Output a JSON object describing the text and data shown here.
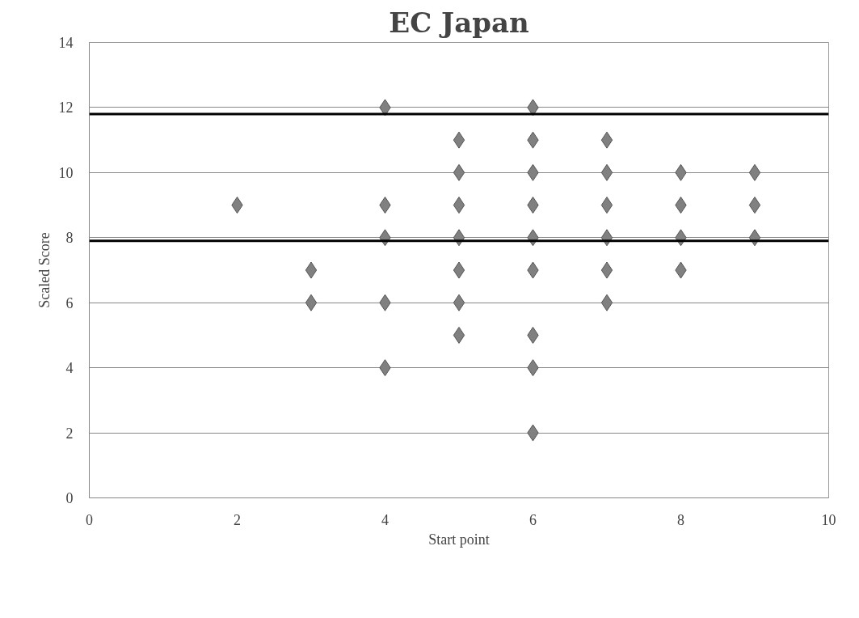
{
  "chart_data": {
    "type": "scatter",
    "title": "EC Japan",
    "xlabel": "Start point",
    "ylabel": "Scaled Score",
    "x": [
      2,
      3,
      3,
      4,
      4,
      4,
      4,
      4,
      5,
      5,
      5,
      5,
      5,
      5,
      5,
      6,
      6,
      6,
      6,
      6,
      6,
      6,
      6,
      6,
      7,
      7,
      7,
      7,
      7,
      7,
      8,
      8,
      8,
      8,
      9,
      9,
      9
    ],
    "values": [
      9,
      7,
      6,
      12,
      9,
      8,
      6,
      4,
      11,
      10,
      9,
      8,
      7,
      6,
      5,
      12,
      11,
      10,
      9,
      8,
      7,
      5,
      4,
      2,
      11,
      10,
      9,
      8,
      7,
      6,
      10,
      9,
      8,
      7,
      10,
      9,
      8
    ],
    "color": "#808080",
    "marker": "diamond",
    "xlim": [
      0,
      10
    ],
    "xticks": [
      0,
      2,
      4,
      6,
      8,
      10
    ],
    "ylim": [
      0,
      14
    ],
    "yticks": [
      0,
      2,
      4,
      6,
      8,
      10,
      12,
      14
    ],
    "grid": "y",
    "ref_lines": [
      {
        "axis": "y",
        "value": 11.8,
        "label": null,
        "color": "#000000"
      },
      {
        "axis": "y",
        "value": 7.9,
        "label": null,
        "color": "#000000"
      }
    ]
  }
}
